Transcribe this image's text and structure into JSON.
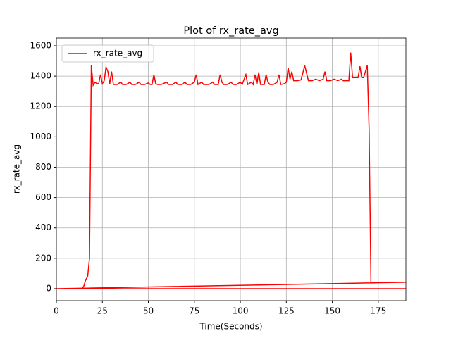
{
  "chart_data": {
    "type": "line",
    "title": "Plot of rx_rate_avg",
    "x_label": "Time(Seconds)",
    "y_label": "rx_rate_avg",
    "x": [
      0,
      5,
      10,
      14,
      15,
      16,
      17,
      18,
      19,
      20,
      21,
      22,
      23,
      24,
      25,
      26,
      27,
      28,
      29,
      30,
      31,
      33,
      35,
      36,
      38,
      40,
      41,
      43,
      45,
      46,
      48,
      50,
      51,
      52,
      53,
      54,
      55,
      57,
      60,
      61,
      63,
      65,
      66,
      68,
      70,
      71,
      73,
      75,
      76,
      77,
      79,
      80,
      83,
      85,
      86,
      88,
      89,
      90,
      91,
      93,
      95,
      96,
      98,
      100,
      101,
      103,
      104,
      106,
      107,
      108,
      109,
      110,
      111,
      113,
      114,
      115,
      116,
      118,
      120,
      121,
      122,
      124,
      125,
      126,
      127,
      128,
      129,
      131,
      133,
      135,
      137,
      139,
      141,
      143,
      145,
      146,
      147,
      149,
      151,
      153,
      155,
      156,
      159,
      160,
      161,
      164,
      165,
      166,
      167,
      169,
      170,
      171,
      180,
      190,
      0,
      190
    ],
    "series": [
      {
        "name": "rx_rate_avg",
        "color": "#ff0000",
        "values": [
          0,
          0,
          0,
          0,
          20,
          60,
          80,
          200,
          1470,
          1340,
          1360,
          1350,
          1350,
          1410,
          1350,
          1370,
          1460,
          1430,
          1350,
          1430,
          1345,
          1345,
          1360,
          1345,
          1345,
          1360,
          1345,
          1345,
          1360,
          1345,
          1345,
          1355,
          1345,
          1345,
          1410,
          1350,
          1345,
          1345,
          1360,
          1345,
          1345,
          1360,
          1345,
          1345,
          1360,
          1345,
          1345,
          1360,
          1410,
          1345,
          1360,
          1345,
          1345,
          1360,
          1345,
          1345,
          1410,
          1360,
          1345,
          1345,
          1360,
          1345,
          1345,
          1360,
          1345,
          1410,
          1345,
          1360,
          1345,
          1410,
          1345,
          1425,
          1345,
          1345,
          1410,
          1360,
          1345,
          1345,
          1360,
          1410,
          1345,
          1350,
          1360,
          1455,
          1380,
          1430,
          1370,
          1370,
          1375,
          1470,
          1370,
          1370,
          1380,
          1370,
          1380,
          1430,
          1370,
          1370,
          1380,
          1370,
          1380,
          1370,
          1370,
          1555,
          1390,
          1390,
          1465,
          1390,
          1390,
          1470,
          1050,
          40,
          40,
          42,
          0,
          0
        ]
      }
    ],
    "xlim": [
      0,
      190
    ],
    "ylim": [
      -79,
      1651
    ],
    "xticks": [
      0,
      25,
      50,
      75,
      100,
      125,
      150,
      175
    ],
    "yticks": [
      0,
      200,
      400,
      600,
      800,
      1000,
      1200,
      1400,
      1600
    ],
    "grid": true,
    "legend": "upper left"
  }
}
